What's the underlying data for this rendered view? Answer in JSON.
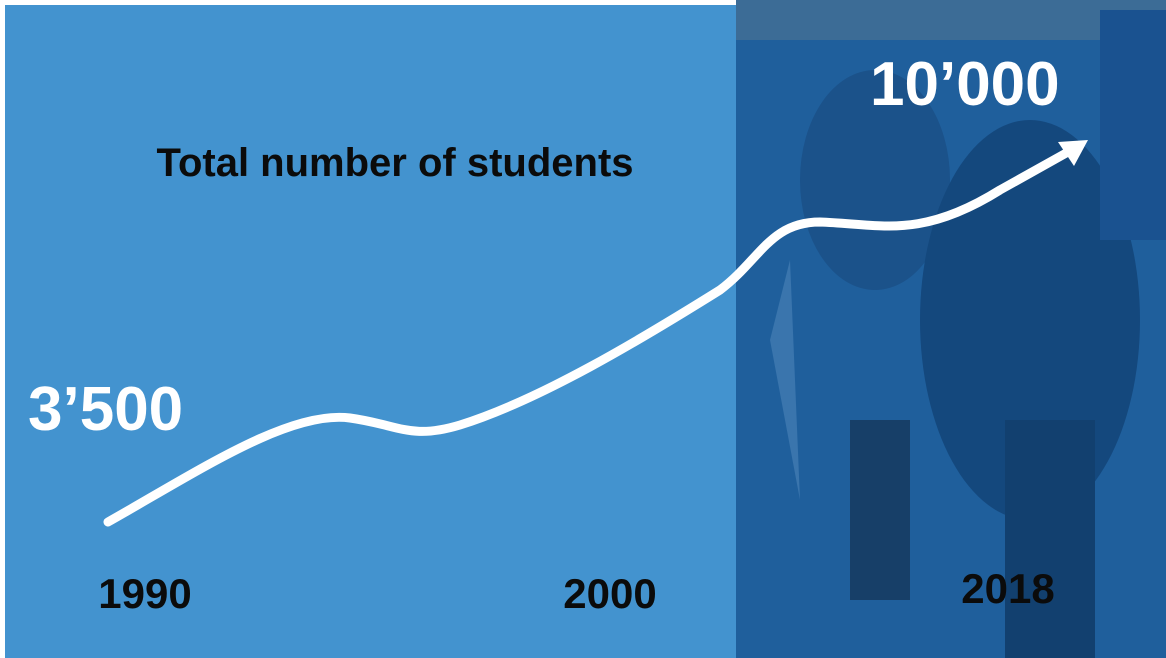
{
  "title": "Total number of students",
  "start_value": "3’500",
  "end_value": "10’000",
  "years": [
    "1990",
    "2000",
    "2018"
  ]
}
